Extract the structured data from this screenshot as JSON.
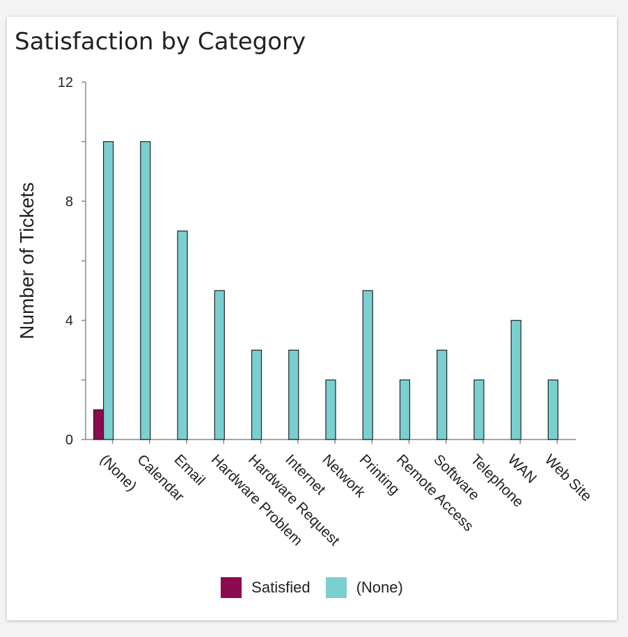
{
  "title": "Satisfaction by Category",
  "colors": {
    "satisfied": "#8b0a50",
    "none": "#7acfd0"
  },
  "chart_data": {
    "type": "bar",
    "title": "Satisfaction by Category",
    "xlabel": "",
    "ylabel": "Number of Tickets",
    "ylim": [
      0,
      12
    ],
    "yticks": [
      0,
      4,
      8,
      12
    ],
    "categories": [
      "(None)",
      "Calendar",
      "Email",
      "Hardware Problem",
      "Hardware Request",
      "Internet",
      "Network",
      "Printing",
      "Remote Access",
      "Software",
      "Telephone",
      "WAN",
      "Web Site"
    ],
    "series": [
      {
        "name": "Satisfied",
        "values": [
          1,
          0,
          0,
          0,
          0,
          0,
          0,
          0,
          0,
          0,
          0,
          0,
          0
        ]
      },
      {
        "name": "(None)",
        "values": [
          10,
          10,
          7,
          5,
          3,
          3,
          2,
          5,
          2,
          3,
          2,
          4,
          2
        ]
      }
    ],
    "legend": [
      "Satisfied",
      "(None)"
    ],
    "legend_position": "bottom"
  }
}
